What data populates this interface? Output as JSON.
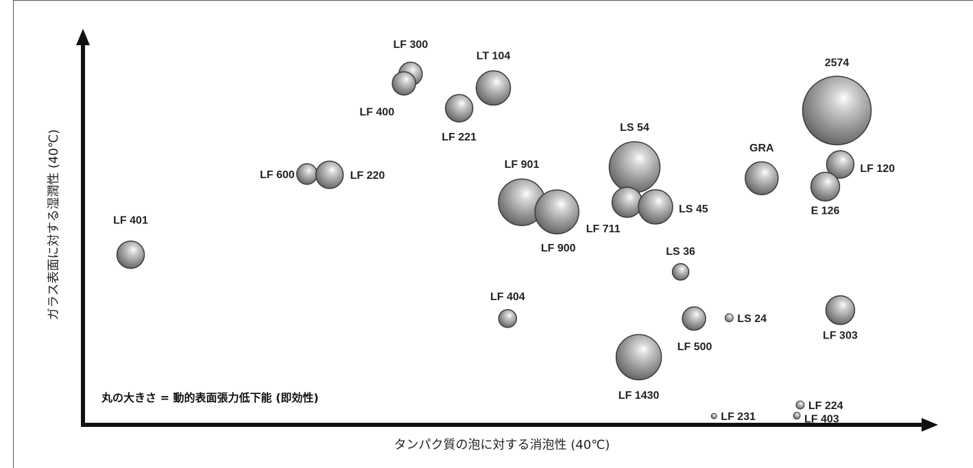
{
  "chart_data": {
    "type": "bubble",
    "xlabel": "タンパク質の泡に対する消泡性 (40℃)",
    "ylabel": "ガラス表面に対する湿潤性 (40℃)",
    "size_note": "丸の大きさ = 動的表面張力低下能 (即効性)",
    "grid": false,
    "legend": "none",
    "xlim": [
      0,
      100
    ],
    "ylim": [
      0,
      100
    ],
    "points": [
      {
        "label": "LF 300",
        "x": 39.2,
        "y": 91.8,
        "size": 17
      },
      {
        "label": "LF 400",
        "x": 38.4,
        "y": 89.3,
        "size": 17
      },
      {
        "label": "LT 104",
        "x": 49.1,
        "y": 88.1,
        "size": 25
      },
      {
        "label": "LF 221",
        "x": 45.0,
        "y": 82.8,
        "size": 20
      },
      {
        "label": "LF 600",
        "x": 26.8,
        "y": 65.6,
        "size": 15
      },
      {
        "label": "LF 220",
        "x": 29.5,
        "y": 65.4,
        "size": 20
      },
      {
        "label": "LF 401",
        "x": 5.7,
        "y": 44.5,
        "size": 20
      },
      {
        "label": "LF 901",
        "x": 52.5,
        "y": 58.2,
        "size": 34
      },
      {
        "label": "LF 900",
        "x": 56.7,
        "y": 55.7,
        "size": 32
      },
      {
        "label": "LS 54",
        "x": 66.0,
        "y": 67.4,
        "size": 37
      },
      {
        "label": "LF 711",
        "x": 65.1,
        "y": 58.2,
        "size": 22
      },
      {
        "label": "LS 45",
        "x": 68.5,
        "y": 57.0,
        "size": 25
      },
      {
        "label": "GRA",
        "x": 81.2,
        "y": 64.5,
        "size": 24
      },
      {
        "label": "2574",
        "x": 90.2,
        "y": 82.2,
        "size": 50
      },
      {
        "label": "LF 120",
        "x": 90.6,
        "y": 68.1,
        "size": 20
      },
      {
        "label": "E 126",
        "x": 88.8,
        "y": 62.3,
        "size": 21
      },
      {
        "label": "LS 36",
        "x": 71.5,
        "y": 40.0,
        "size": 12
      },
      {
        "label": "LF 404",
        "x": 50.8,
        "y": 27.8,
        "size": 13
      },
      {
        "label": "LF 500",
        "x": 73.1,
        "y": 27.8,
        "size": 17
      },
      {
        "label": "LS 24",
        "x": 77.3,
        "y": 28.0,
        "size": 6
      },
      {
        "label": "LF 303",
        "x": 90.6,
        "y": 30.0,
        "size": 21
      },
      {
        "label": "LF 1430",
        "x": 66.5,
        "y": 17.7,
        "size": 33
      },
      {
        "label": "LF 231",
        "x": 75.5,
        "y": 2.3,
        "size": 4
      },
      {
        "label": "LF 224",
        "x": 85.8,
        "y": 5.2,
        "size": 6
      },
      {
        "label": "LF 403",
        "x": 85.4,
        "y": 2.4,
        "size": 5
      }
    ]
  }
}
